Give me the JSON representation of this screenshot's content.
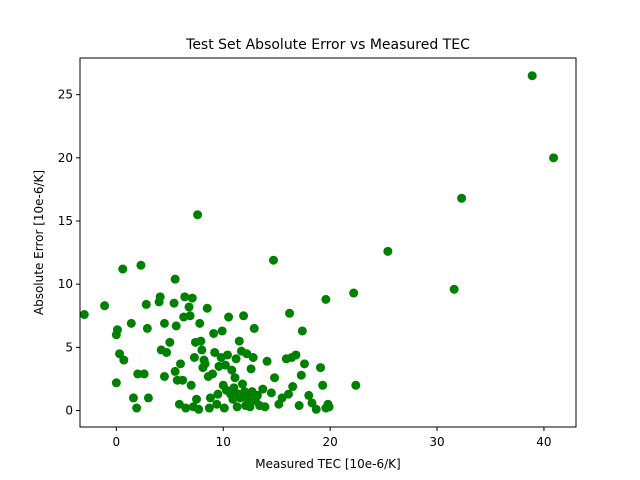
{
  "chart_data": {
    "type": "scatter",
    "title": "Test Set Absolute Error vs Measured TEC",
    "xlabel": "Measured TEC [10e-6/K]",
    "ylabel": "Absolute Error [10e-6/K]",
    "xlim": [
      -3.4,
      43.0
    ],
    "ylim": [
      -1.3,
      27.9
    ],
    "xticks": [
      0,
      10,
      20,
      30,
      40
    ],
    "yticks": [
      0,
      5,
      10,
      15,
      20,
      25
    ],
    "grid": false,
    "marker_color": "#008000",
    "series": [
      {
        "points": [
          [
            -3.0,
            7.6
          ],
          [
            -1.1,
            8.3
          ],
          [
            0.0,
            6.0
          ],
          [
            0.1,
            6.4
          ],
          [
            0.0,
            2.2
          ],
          [
            0.3,
            4.5
          ],
          [
            0.6,
            11.2
          ],
          [
            0.7,
            4.0
          ],
          [
            1.4,
            6.9
          ],
          [
            1.6,
            1.0
          ],
          [
            1.9,
            0.2
          ],
          [
            2.0,
            2.9
          ],
          [
            2.3,
            11.5
          ],
          [
            2.6,
            2.9
          ],
          [
            2.8,
            8.4
          ],
          [
            2.9,
            6.5
          ],
          [
            3.0,
            1.0
          ],
          [
            4.0,
            8.6
          ],
          [
            4.1,
            9.0
          ],
          [
            4.2,
            4.8
          ],
          [
            4.5,
            2.7
          ],
          [
            4.5,
            6.9
          ],
          [
            4.7,
            4.6
          ],
          [
            5.0,
            5.4
          ],
          [
            5.4,
            8.5
          ],
          [
            5.5,
            10.4
          ],
          [
            5.5,
            3.1
          ],
          [
            5.6,
            6.7
          ],
          [
            5.7,
            2.4
          ],
          [
            5.9,
            0.5
          ],
          [
            6.0,
            3.7
          ],
          [
            6.2,
            2.4
          ],
          [
            6.3,
            7.4
          ],
          [
            6.4,
            9.0
          ],
          [
            6.5,
            0.2
          ],
          [
            6.8,
            8.2
          ],
          [
            6.9,
            7.5
          ],
          [
            7.0,
            2.0
          ],
          [
            7.1,
            8.9
          ],
          [
            7.2,
            0.3
          ],
          [
            7.3,
            4.2
          ],
          [
            7.4,
            5.4
          ],
          [
            7.5,
            0.9
          ],
          [
            7.6,
            15.5
          ],
          [
            7.7,
            0.1
          ],
          [
            7.8,
            6.9
          ],
          [
            7.9,
            5.5
          ],
          [
            8.0,
            4.8
          ],
          [
            8.1,
            3.4
          ],
          [
            8.2,
            4.0
          ],
          [
            8.3,
            3.7
          ],
          [
            8.5,
            8.1
          ],
          [
            8.6,
            2.7
          ],
          [
            8.7,
            0.2
          ],
          [
            8.8,
            1.0
          ],
          [
            9.0,
            2.9
          ],
          [
            9.1,
            6.1
          ],
          [
            9.2,
            4.6
          ],
          [
            9.4,
            0.5
          ],
          [
            9.5,
            1.3
          ],
          [
            9.6,
            3.5
          ],
          [
            9.8,
            4.2
          ],
          [
            9.9,
            6.3
          ],
          [
            10.0,
            2.0
          ],
          [
            10.1,
            0.2
          ],
          [
            10.2,
            3.6
          ],
          [
            10.3,
            1.6
          ],
          [
            10.4,
            4.4
          ],
          [
            10.5,
            7.4
          ],
          [
            10.7,
            1.3
          ],
          [
            10.8,
            3.2
          ],
          [
            10.9,
            0.9
          ],
          [
            11.0,
            1.8
          ],
          [
            11.1,
            2.6
          ],
          [
            11.2,
            4.1
          ],
          [
            11.3,
            0.3
          ],
          [
            11.4,
            1.3
          ],
          [
            11.5,
            5.5
          ],
          [
            11.6,
            1.0
          ],
          [
            11.7,
            4.7
          ],
          [
            11.8,
            2.1
          ],
          [
            11.9,
            7.5
          ],
          [
            12.0,
            1.5
          ],
          [
            12.1,
            0.4
          ],
          [
            12.2,
            4.5
          ],
          [
            12.3,
            0.9
          ],
          [
            12.4,
            1.3
          ],
          [
            12.5,
            0.3
          ],
          [
            12.6,
            3.3
          ],
          [
            12.7,
            1.5
          ],
          [
            12.8,
            4.2
          ],
          [
            12.9,
            6.5
          ],
          [
            13.0,
            0.8
          ],
          [
            13.2,
            1.2
          ],
          [
            13.4,
            0.4
          ],
          [
            13.7,
            1.7
          ],
          [
            13.9,
            0.3
          ],
          [
            14.1,
            3.9
          ],
          [
            14.5,
            1.4
          ],
          [
            14.7,
            11.9
          ],
          [
            14.8,
            2.6
          ],
          [
            15.2,
            0.5
          ],
          [
            15.5,
            1.0
          ],
          [
            15.9,
            4.1
          ],
          [
            16.1,
            1.3
          ],
          [
            16.2,
            7.7
          ],
          [
            16.4,
            4.2
          ],
          [
            16.5,
            1.9
          ],
          [
            16.8,
            4.4
          ],
          [
            17.1,
            0.4
          ],
          [
            17.3,
            2.8
          ],
          [
            17.4,
            6.3
          ],
          [
            17.6,
            3.7
          ],
          [
            18.0,
            1.2
          ],
          [
            18.3,
            0.6
          ],
          [
            18.7,
            0.1
          ],
          [
            19.1,
            3.4
          ],
          [
            19.3,
            2.0
          ],
          [
            19.6,
            0.2
          ],
          [
            19.8,
            0.5
          ],
          [
            19.6,
            8.8
          ],
          [
            19.9,
            0.3
          ],
          [
            22.2,
            9.3
          ],
          [
            22.4,
            2.0
          ],
          [
            25.4,
            12.6
          ],
          [
            31.6,
            9.6
          ],
          [
            32.3,
            16.8
          ],
          [
            38.9,
            26.5
          ],
          [
            40.9,
            20.0
          ]
        ]
      }
    ]
  }
}
